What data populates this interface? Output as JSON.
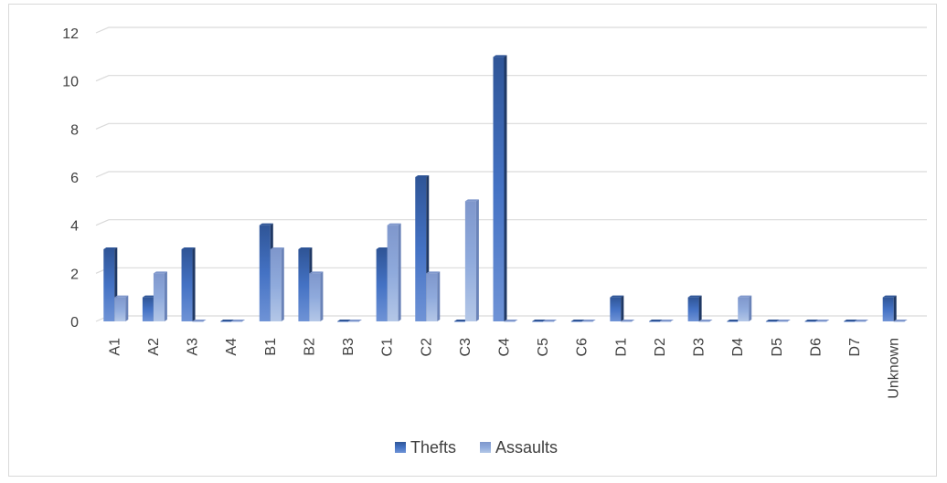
{
  "chart_data": {
    "type": "bar",
    "title": "",
    "xlabel": "",
    "ylabel": "",
    "categories": [
      "A1",
      "A2",
      "A3",
      "A4",
      "B1",
      "B2",
      "B3",
      "C1",
      "C2",
      "C3",
      "C4",
      "C5",
      "C6",
      "D1",
      "D2",
      "D3",
      "D4",
      "D5",
      "D6",
      "D7",
      "Unknown"
    ],
    "series": [
      {
        "name": "Thefts",
        "values": [
          3,
          1,
          3,
          0,
          4,
          3,
          0,
          3,
          6,
          0,
          11,
          0,
          0,
          1,
          0,
          1,
          0,
          0,
          0,
          0,
          1
        ]
      },
      {
        "name": "Assaults",
        "values": [
          1,
          2,
          0,
          0,
          3,
          2,
          0,
          4,
          2,
          5,
          0,
          0,
          0,
          0,
          0,
          0,
          1,
          0,
          0,
          0,
          0
        ]
      }
    ],
    "ylim": [
      0,
      12
    ],
    "yticks": [
      0,
      2,
      4,
      6,
      8,
      10,
      12
    ],
    "grid": true,
    "legend_position": "bottom",
    "colors": {
      "Thefts": "#4472c4",
      "Assaults": "#8faadc",
      "grid": "#d9d9d9"
    }
  }
}
